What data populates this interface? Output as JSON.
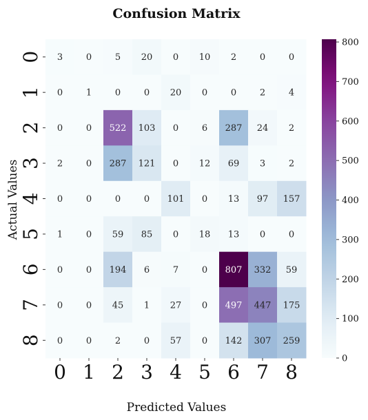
{
  "chart_data": {
    "type": "heatmap",
    "title": "Confusion Matrix",
    "xlabel": "Predicted Values",
    "ylabel": "Actual Values",
    "x_categories": [
      "0",
      "1",
      "2",
      "3",
      "4",
      "5",
      "6",
      "7",
      "8"
    ],
    "y_categories": [
      "0",
      "1",
      "2",
      "3",
      "4",
      "5",
      "6",
      "7",
      "8"
    ],
    "values": [
      [
        3,
        0,
        5,
        20,
        0,
        10,
        2,
        0,
        0
      ],
      [
        0,
        1,
        0,
        0,
        20,
        0,
        0,
        2,
        4
      ],
      [
        0,
        0,
        522,
        103,
        0,
        6,
        287,
        24,
        2
      ],
      [
        2,
        0,
        287,
        121,
        0,
        12,
        69,
        3,
        2
      ],
      [
        0,
        0,
        0,
        0,
        101,
        0,
        13,
        97,
        157
      ],
      [
        1,
        0,
        59,
        85,
        0,
        18,
        13,
        0,
        0
      ],
      [
        0,
        0,
        194,
        6,
        7,
        0,
        807,
        332,
        59
      ],
      [
        0,
        0,
        45,
        1,
        27,
        0,
        497,
        447,
        175
      ],
      [
        0,
        0,
        2,
        0,
        57,
        0,
        142,
        307,
        259
      ]
    ],
    "colormap": "BuPu",
    "colorbar": {
      "min": 0,
      "max": 807,
      "ticks": [
        0,
        100,
        200,
        300,
        400,
        500,
        600,
        700,
        800
      ]
    }
  }
}
